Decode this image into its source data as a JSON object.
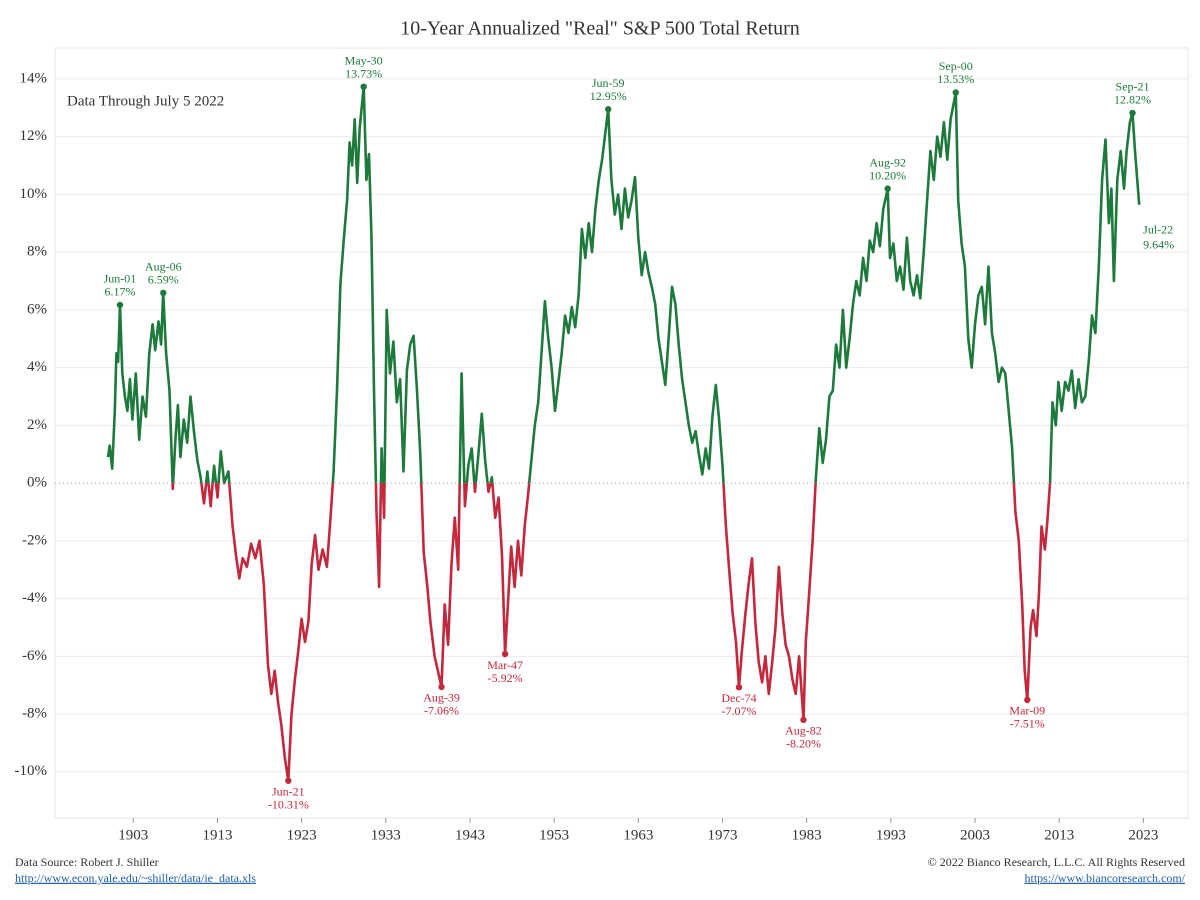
{
  "chart_data": {
    "type": "line",
    "title": "10-Year Annualized \"Real\" S&P 500 Total Return",
    "subtitle": "Data Through July 5 2022",
    "x": [
      1900.0,
      1900.2,
      1900.5,
      1900.8,
      1901.0,
      1901.2,
      1901.42,
      1901.7,
      1902.0,
      1902.3,
      1902.6,
      1902.9,
      1903.3,
      1903.7,
      1904.1,
      1904.5,
      1904.9,
      1905.3,
      1905.6,
      1906.0,
      1906.3,
      1906.56,
      1906.9,
      1907.3,
      1907.7,
      1908.0,
      1908.3,
      1908.6,
      1909.0,
      1909.4,
      1909.8,
      1910.2,
      1910.6,
      1911.0,
      1911.4,
      1911.8,
      1912.2,
      1912.6,
      1913.0,
      1913.4,
      1913.8,
      1914.3,
      1914.8,
      1915.2,
      1915.6,
      1916.0,
      1916.5,
      1917.0,
      1917.5,
      1918.0,
      1918.5,
      1919.0,
      1919.4,
      1919.8,
      1920.2,
      1920.6,
      1921.0,
      1921.42,
      1921.8,
      1922.2,
      1922.6,
      1923.0,
      1923.4,
      1923.8,
      1924.2,
      1924.6,
      1925.0,
      1925.5,
      1926.0,
      1926.4,
      1926.8,
      1927.2,
      1927.6,
      1928.0,
      1928.4,
      1928.7,
      1929.0,
      1929.3,
      1929.6,
      1929.9,
      1930.37,
      1930.7,
      1931.0,
      1931.3,
      1931.6,
      1931.9,
      1932.2,
      1932.5,
      1932.8,
      1933.1,
      1933.5,
      1933.9,
      1934.3,
      1934.7,
      1935.1,
      1935.5,
      1935.9,
      1936.3,
      1936.7,
      1937.1,
      1937.5,
      1937.9,
      1938.3,
      1938.8,
      1939.62,
      1940.0,
      1940.4,
      1940.8,
      1941.2,
      1941.6,
      1942.0,
      1942.4,
      1942.8,
      1943.2,
      1943.6,
      1944.0,
      1944.4,
      1944.8,
      1945.2,
      1945.6,
      1946.0,
      1946.4,
      1946.8,
      1947.17,
      1947.5,
      1947.9,
      1948.3,
      1948.7,
      1949.1,
      1949.5,
      1949.9,
      1950.3,
      1950.7,
      1951.1,
      1951.5,
      1951.9,
      1952.3,
      1952.7,
      1953.1,
      1953.5,
      1953.9,
      1954.3,
      1954.7,
      1955.1,
      1955.5,
      1955.9,
      1956.3,
      1956.7,
      1957.1,
      1957.5,
      1957.9,
      1958.3,
      1958.7,
      1959.42,
      1959.8,
      1960.2,
      1960.6,
      1961.0,
      1961.4,
      1961.8,
      1962.2,
      1962.6,
      1963.0,
      1963.4,
      1963.8,
      1964.2,
      1964.6,
      1965.0,
      1965.4,
      1965.8,
      1966.2,
      1966.6,
      1967.0,
      1967.4,
      1967.8,
      1968.2,
      1968.6,
      1969.0,
      1969.4,
      1969.8,
      1970.2,
      1970.6,
      1971.0,
      1971.4,
      1971.8,
      1972.2,
      1972.6,
      1973.0,
      1973.4,
      1973.8,
      1974.2,
      1974.6,
      1974.96,
      1975.3,
      1975.7,
      1976.1,
      1976.5,
      1976.9,
      1977.3,
      1977.7,
      1978.1,
      1978.5,
      1978.9,
      1979.3,
      1979.7,
      1980.1,
      1980.5,
      1980.9,
      1981.3,
      1981.7,
      1982.1,
      1982.62,
      1982.9,
      1983.3,
      1983.7,
      1984.1,
      1984.5,
      1984.9,
      1985.3,
      1985.7,
      1986.1,
      1986.5,
      1986.9,
      1987.3,
      1987.7,
      1988.1,
      1988.5,
      1988.9,
      1989.3,
      1989.7,
      1990.1,
      1990.5,
      1990.9,
      1991.3,
      1991.7,
      1992.1,
      1992.62,
      1992.9,
      1993.3,
      1993.7,
      1994.1,
      1994.5,
      1994.9,
      1995.3,
      1995.7,
      1996.1,
      1996.5,
      1996.9,
      1997.3,
      1997.7,
      1998.1,
      1998.5,
      1998.9,
      1999.3,
      1999.7,
      2000.1,
      2000.71,
      2001.0,
      2001.4,
      2001.8,
      2002.2,
      2002.6,
      2003.0,
      2003.4,
      2003.8,
      2004.2,
      2004.6,
      2005.0,
      2005.4,
      2005.8,
      2006.2,
      2006.6,
      2007.0,
      2007.4,
      2007.8,
      2008.2,
      2008.6,
      2008.9,
      2009.21,
      2009.6,
      2009.9,
      2010.3,
      2010.6,
      2010.9,
      2011.3,
      2011.6,
      2011.9,
      2012.2,
      2012.6,
      2012.9,
      2013.3,
      2013.7,
      2014.1,
      2014.5,
      2014.9,
      2015.3,
      2015.7,
      2016.1,
      2016.5,
      2016.9,
      2017.3,
      2017.7,
      2018.1,
      2018.5,
      2018.9,
      2019.2,
      2019.5,
      2019.9,
      2020.3,
      2020.7,
      2021.0,
      2021.4,
      2021.71,
      2022.0,
      2022.5
    ],
    "series": [
      {
        "name": "10-Year Annualized Real Total Return",
        "color": "#1e7a3c",
        "negative_color": "#c3283d",
        "values": [
          0.9,
          1.3,
          0.5,
          2.5,
          4.5,
          4.2,
          6.17,
          3.8,
          3.0,
          2.5,
          3.6,
          2.2,
          3.8,
          1.5,
          3.0,
          2.3,
          4.5,
          5.5,
          4.6,
          5.6,
          4.8,
          6.59,
          4.5,
          3.2,
          -0.2,
          1.5,
          2.7,
          0.9,
          2.2,
          1.4,
          3.0,
          1.8,
          0.8,
          0.2,
          -0.7,
          0.4,
          -0.8,
          0.6,
          -0.5,
          1.1,
          0.0,
          0.4,
          -1.5,
          -2.5,
          -3.3,
          -2.6,
          -2.9,
          -2.1,
          -2.6,
          -2.0,
          -3.5,
          -6.3,
          -7.3,
          -6.5,
          -7.6,
          -8.4,
          -9.5,
          -10.31,
          -8.0,
          -6.8,
          -5.8,
          -4.7,
          -5.5,
          -4.8,
          -2.8,
          -1.8,
          -3.0,
          -2.3,
          -2.9,
          -1.3,
          0.4,
          3.2,
          6.9,
          8.4,
          9.8,
          11.8,
          11.0,
          12.6,
          10.4,
          12.3,
          13.73,
          10.5,
          11.4,
          8.5,
          3.2,
          -1.0,
          -3.6,
          1.2,
          -1.2,
          6.0,
          3.8,
          4.9,
          2.8,
          3.6,
          0.4,
          3.9,
          4.8,
          5.1,
          3.2,
          1.0,
          -2.4,
          -3.5,
          -4.8,
          -6.0,
          -7.06,
          -4.2,
          -5.6,
          -2.8,
          -1.2,
          -3.0,
          3.8,
          -0.8,
          0.6,
          1.2,
          -0.3,
          1.0,
          2.4,
          0.8,
          -0.3,
          0.2,
          -1.2,
          -0.5,
          -2.5,
          -5.92,
          -4.2,
          -2.2,
          -3.6,
          -2.0,
          -3.2,
          -1.5,
          -0.4,
          0.8,
          2.0,
          2.8,
          4.5,
          6.3,
          5.0,
          4.0,
          2.5,
          3.5,
          4.5,
          5.8,
          5.2,
          6.1,
          5.4,
          6.5,
          8.8,
          7.8,
          9.0,
          8.0,
          9.5,
          10.5,
          11.2,
          12.95,
          10.5,
          9.3,
          10.0,
          8.8,
          10.2,
          9.2,
          9.8,
          10.6,
          8.5,
          7.2,
          8.0,
          7.3,
          6.8,
          6.2,
          5.0,
          4.2,
          3.4,
          5.0,
          6.8,
          6.2,
          4.8,
          3.6,
          2.8,
          2.0,
          1.4,
          1.8,
          1.0,
          0.3,
          1.2,
          0.5,
          2.3,
          3.4,
          2.2,
          0.6,
          -1.5,
          -3.0,
          -4.5,
          -5.5,
          -7.07,
          -5.8,
          -4.6,
          -3.5,
          -2.6,
          -4.8,
          -6.2,
          -6.9,
          -6.0,
          -7.3,
          -6.2,
          -5.0,
          -2.9,
          -4.5,
          -5.6,
          -6.0,
          -6.8,
          -7.3,
          -6.0,
          -8.2,
          -5.5,
          -3.8,
          -2.0,
          0.2,
          1.9,
          0.7,
          1.5,
          3.0,
          3.2,
          4.8,
          4.0,
          6.0,
          4.0,
          5.0,
          6.2,
          7.0,
          6.5,
          7.8,
          7.0,
          8.4,
          8.0,
          9.0,
          8.2,
          9.5,
          10.2,
          7.8,
          8.3,
          7.0,
          7.5,
          6.7,
          8.5,
          7.0,
          6.5,
          7.2,
          6.4,
          8.0,
          9.8,
          11.5,
          10.5,
          12.0,
          11.3,
          12.5,
          11.2,
          12.6,
          13.53,
          9.8,
          8.3,
          7.5,
          5.0,
          4.0,
          5.5,
          6.5,
          6.8,
          5.5,
          7.5,
          5.2,
          4.5,
          3.5,
          4.0,
          3.8,
          2.5,
          1.2,
          -1.0,
          -2.0,
          -4.2,
          -6.5,
          -7.51,
          -5.0,
          -4.4,
          -5.3,
          -3.8,
          -1.5,
          -2.3,
          -1.3,
          0.0,
          2.8,
          2.0,
          3.5,
          2.5,
          3.5,
          3.2,
          3.9,
          2.6,
          3.6,
          2.8,
          3.0,
          4.2,
          5.8,
          5.2,
          7.5,
          10.5,
          11.9,
          9.0,
          10.2,
          7.0,
          10.5,
          11.5,
          10.2,
          11.5,
          12.5,
          12.82,
          11.5,
          9.64
        ]
      }
    ],
    "annotations": [
      {
        "label": "Jun-01",
        "value_label": "6.17%",
        "x": 1901.42,
        "y": 6.17
      },
      {
        "label": "Aug-06",
        "value_label": "6.59%",
        "x": 1906.56,
        "y": 6.59
      },
      {
        "label": "Jun-21",
        "value_label": "-10.31%",
        "x": 1921.42,
        "y": -10.31
      },
      {
        "label": "May-30",
        "value_label": "13.73%",
        "x": 1930.37,
        "y": 13.73
      },
      {
        "label": "Aug-39",
        "value_label": "-7.06%",
        "x": 1939.62,
        "y": -7.06
      },
      {
        "label": "Mar-47",
        "value_label": "-5.92%",
        "x": 1947.17,
        "y": -5.92
      },
      {
        "label": "Jun-59",
        "value_label": "12.95%",
        "x": 1959.42,
        "y": 12.95
      },
      {
        "label": "Dec-74",
        "value_label": "-7.07%",
        "x": 1974.96,
        "y": -7.07
      },
      {
        "label": "Aug-82",
        "value_label": "-8.20%",
        "x": 1982.62,
        "y": -8.2
      },
      {
        "label": "Aug-92",
        "value_label": "10.20%",
        "x": 1992.62,
        "y": 10.2
      },
      {
        "label": "Sep-00",
        "value_label": "13.53%",
        "x": 2000.71,
        "y": 13.53
      },
      {
        "label": "Mar-09",
        "value_label": "-7.51%",
        "x": 2009.21,
        "y": -7.51
      },
      {
        "label": "Sep-21",
        "value_label": "12.82%",
        "x": 2021.71,
        "y": 12.82
      },
      {
        "label": "Jul-22",
        "value_label": "9.64%",
        "x": 2022.5,
        "y": 9.64
      }
    ],
    "xlim": [
      1893.7,
      2028.3
    ],
    "xticks": [
      1903,
      1913,
      1923,
      1933,
      1943,
      1953,
      1963,
      1973,
      1983,
      1993,
      2003,
      2013,
      2023
    ],
    "ylim": [
      -11.6,
      15.07
    ],
    "yticks": [
      {
        "value": -10,
        "label": "-10%"
      },
      {
        "value": -8,
        "label": "-8%"
      },
      {
        "value": -6,
        "label": "-6%"
      },
      {
        "value": -4,
        "label": "-4%"
      },
      {
        "value": -2,
        "label": "-2%"
      },
      {
        "value": 0,
        "label": "0%"
      },
      {
        "value": 2,
        "label": "2%"
      },
      {
        "value": 4,
        "label": "4%"
      },
      {
        "value": 6,
        "label": "6%"
      },
      {
        "value": 8,
        "label": "8%"
      },
      {
        "value": 10,
        "label": "10%"
      },
      {
        "value": 12,
        "label": "12%"
      },
      {
        "value": 14,
        "label": "14%"
      }
    ],
    "grid": true
  },
  "footer": {
    "source": "Data Source: Robert J. Shiller",
    "source_url": "http://www.econ.yale.edu/~shiller/data/ie_data.xls",
    "copyright": "© 2022 Bianco Research, L.L.C. All Rights Reserved",
    "site_url": "https://www.biancoresearch.com/"
  }
}
